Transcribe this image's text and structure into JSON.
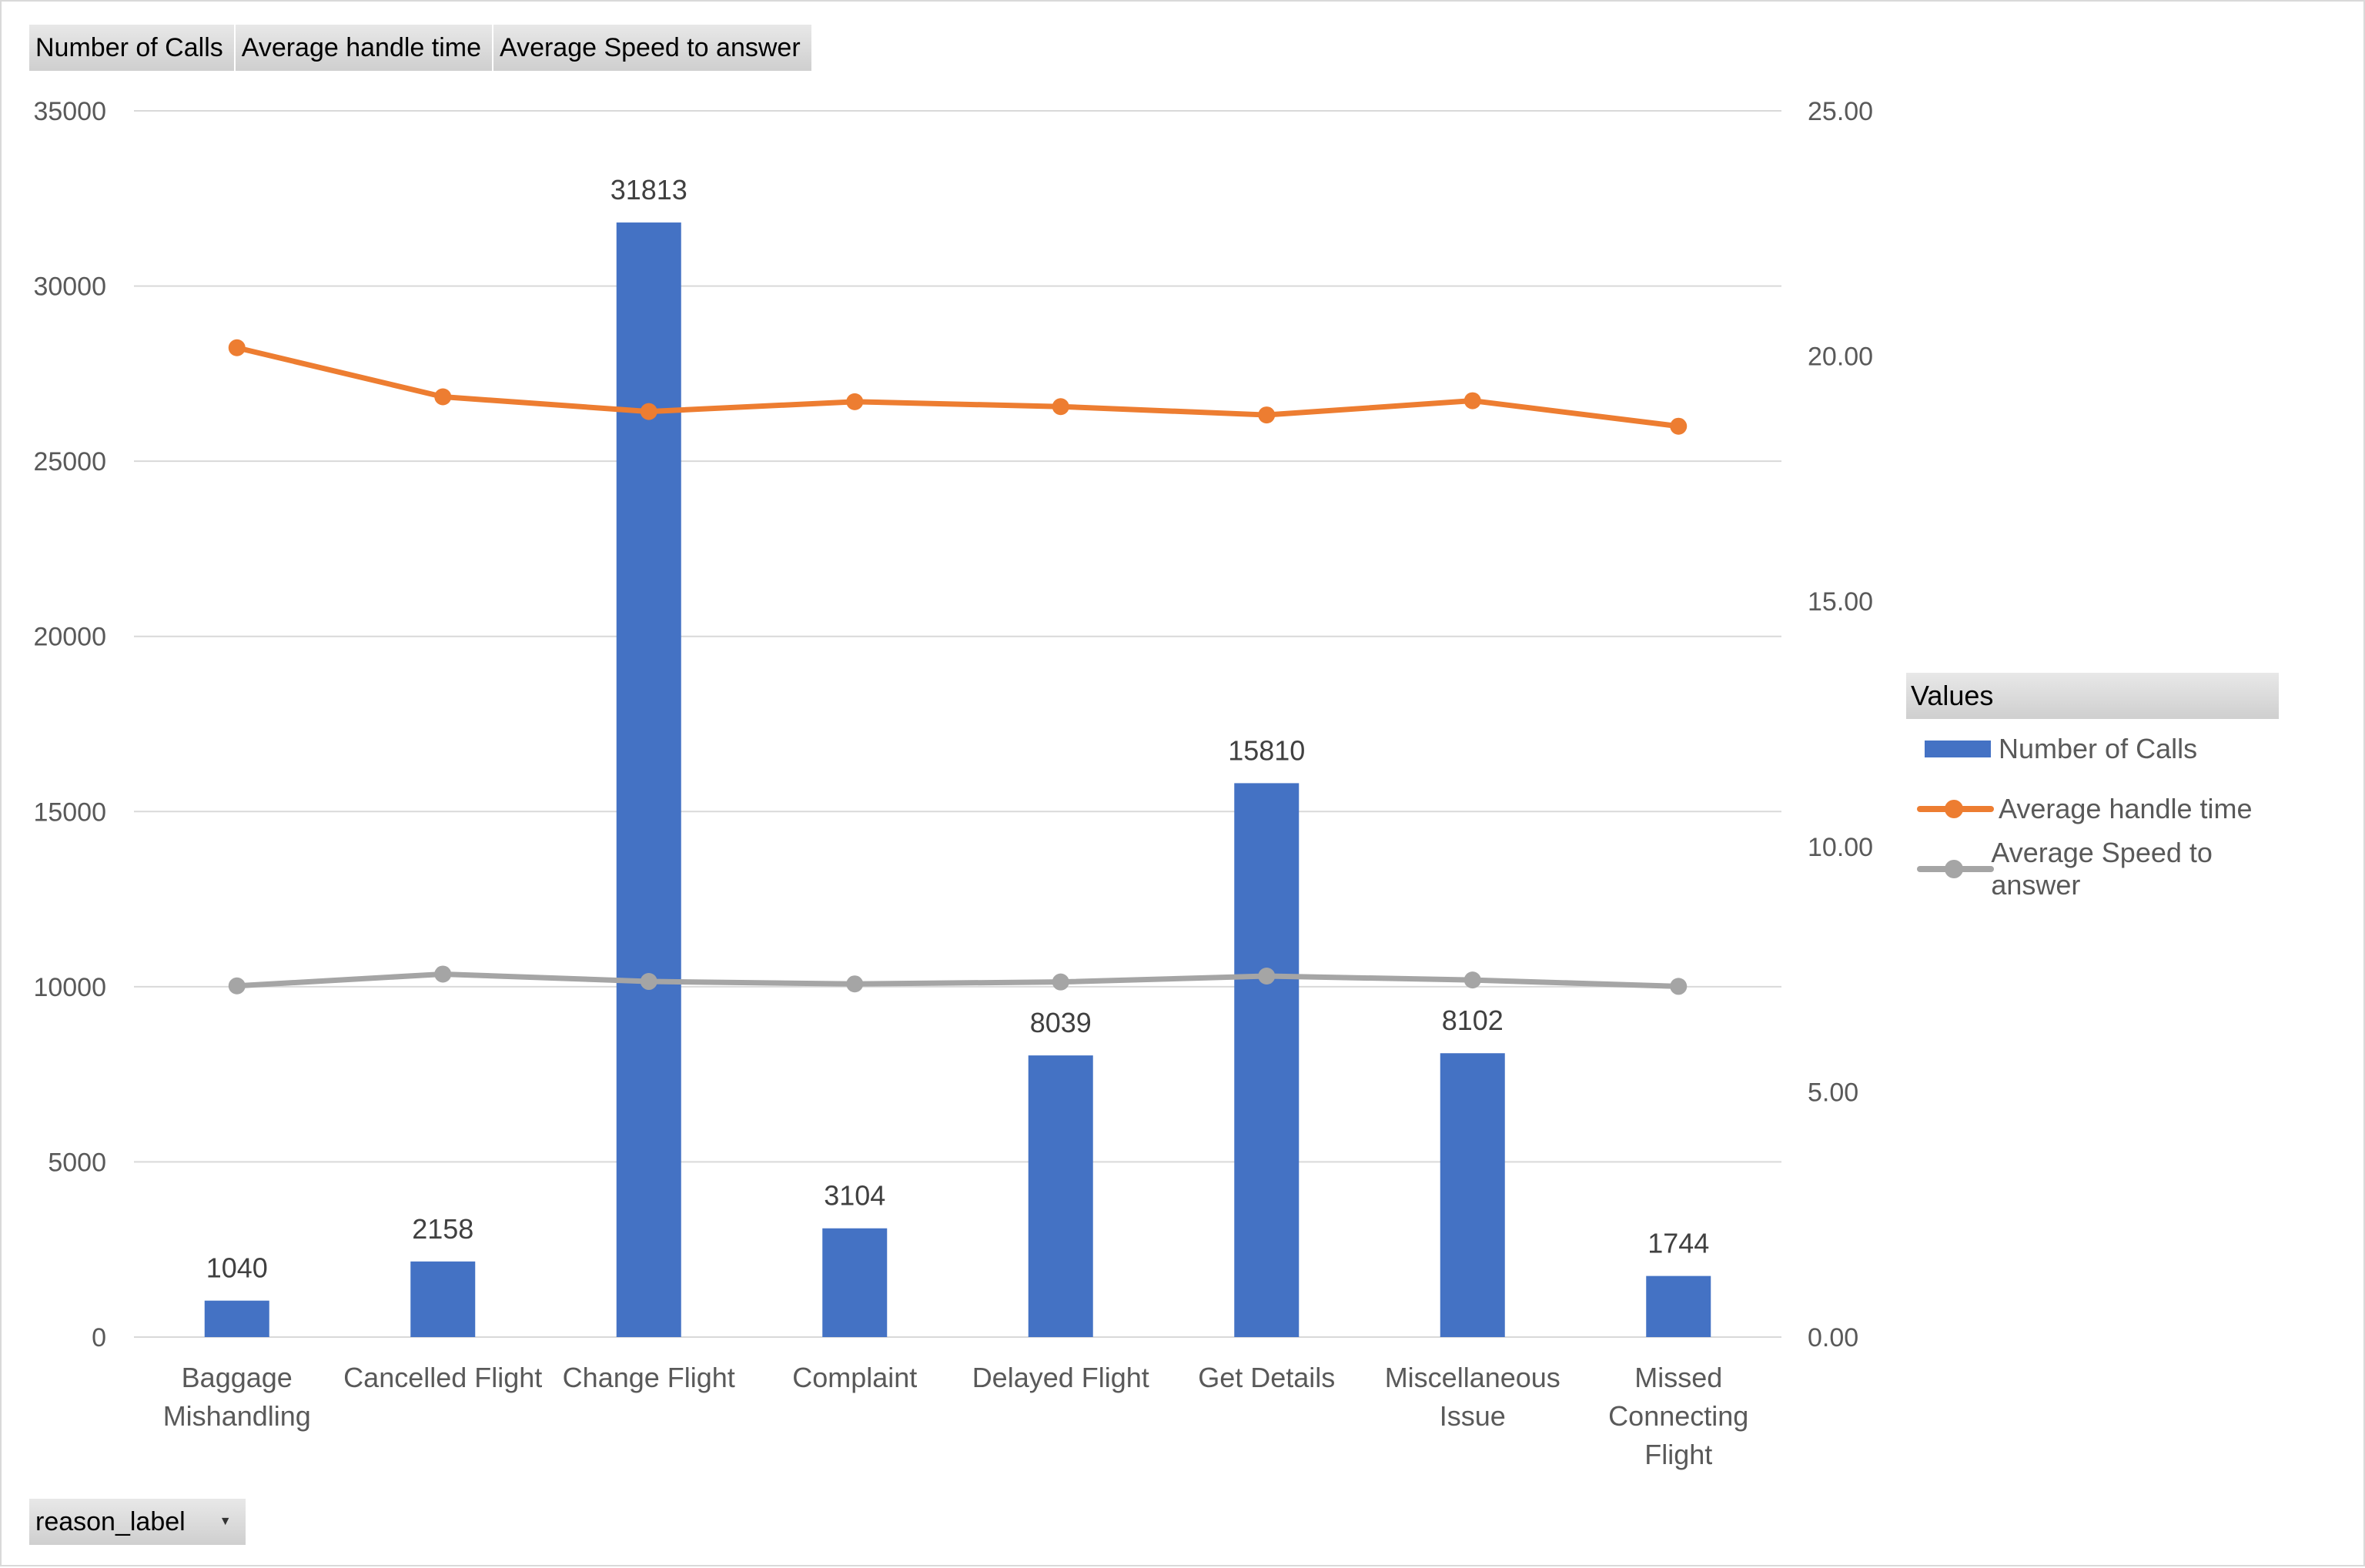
{
  "field_buttons": [
    "Number of Calls",
    "Average handle time",
    "Average Speed to answer"
  ],
  "axis_field_button": "reason_label",
  "legend": {
    "title": "Values",
    "items": [
      "Number of Calls",
      "Average handle time",
      "Average Speed to answer"
    ]
  },
  "chart_data": {
    "type": "bar",
    "categories": [
      "Baggage Mishandling",
      "Cancelled Flight",
      "Change Flight",
      "Complaint",
      "Delayed Flight",
      "Get Details",
      "Miscellaneous Issue",
      "Missed Connecting Flight"
    ],
    "category_lines": [
      [
        "Baggage",
        "Mishandling"
      ],
      [
        "Cancelled Flight"
      ],
      [
        "Change Flight"
      ],
      [
        "Complaint"
      ],
      [
        "Delayed Flight"
      ],
      [
        "Get Details"
      ],
      [
        "Miscellaneous",
        "Issue"
      ],
      [
        "Missed",
        "Connecting",
        "Flight"
      ]
    ],
    "series": [
      {
        "name": "Number of Calls",
        "type": "bar",
        "axis": "left",
        "values": [
          1040,
          2158,
          31813,
          3104,
          8039,
          15810,
          8102,
          1744
        ],
        "data_labels": [
          "1040",
          "2158",
          "31813",
          "3104",
          "8039",
          "15810",
          "8102",
          "1744"
        ]
      },
      {
        "name": "Average handle time",
        "type": "line",
        "axis": "right",
        "values": [
          20.17,
          19.17,
          18.87,
          19.07,
          18.97,
          18.8,
          19.09,
          18.57
        ]
      },
      {
        "name": "Average Speed to answer",
        "type": "line",
        "axis": "right",
        "values": [
          7.16,
          7.4,
          7.25,
          7.2,
          7.24,
          7.36,
          7.28,
          7.15
        ]
      }
    ],
    "y_left": {
      "ylim": [
        0,
        35000
      ],
      "ticks": [
        0,
        5000,
        10000,
        15000,
        20000,
        25000,
        30000,
        35000
      ],
      "tick_labels": [
        "0",
        "5000",
        "10000",
        "15000",
        "20000",
        "25000",
        "30000",
        "35000"
      ]
    },
    "y_right": {
      "ylim": [
        0,
        25
      ],
      "ticks": [
        0,
        5,
        10,
        15,
        20,
        25
      ],
      "tick_labels": [
        "0.00",
        "5.00",
        "10.00",
        "15.00",
        "20.00",
        "25.00"
      ]
    },
    "grid": true,
    "legend_position": "right",
    "colors": {
      "Number of Calls": "#4472c4",
      "Average handle time": "#ed7d31",
      "Average Speed to answer": "#a5a5a5",
      "gridline": "#d9d9d9"
    }
  }
}
